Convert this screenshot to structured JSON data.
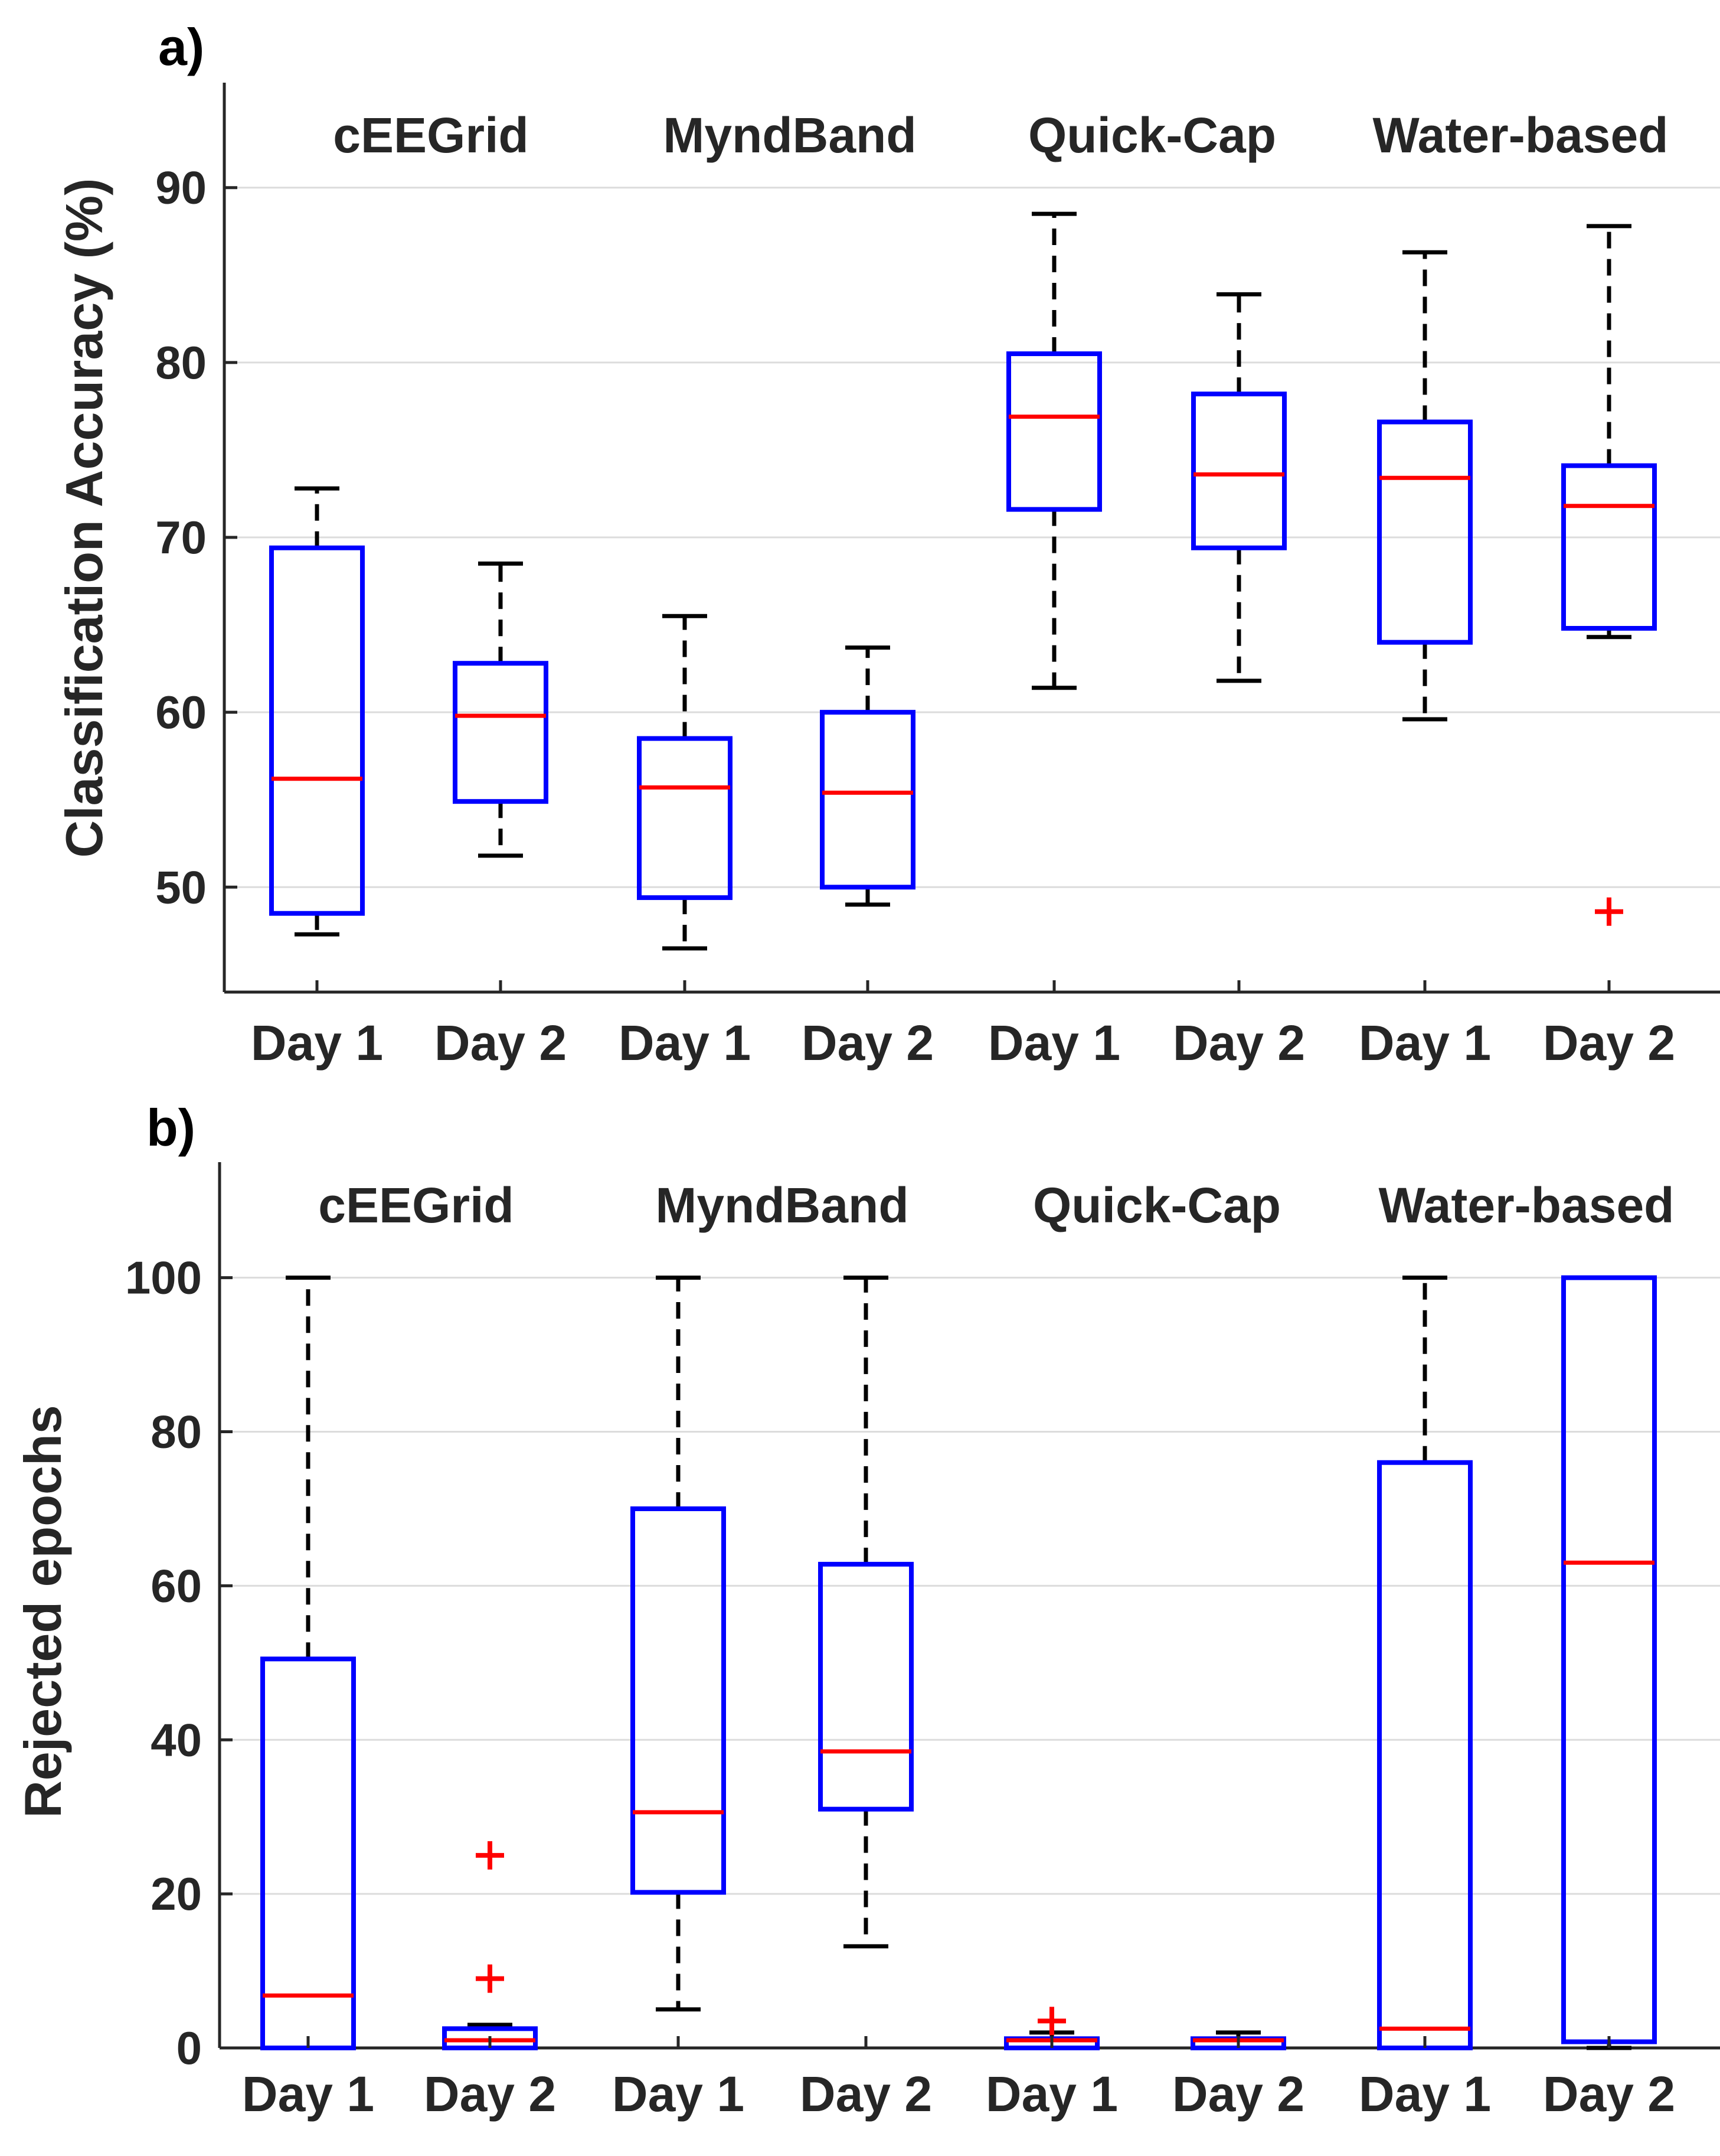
{
  "colors": {
    "box": "#0000ff",
    "median": "#ff0000",
    "whisker": "#000000",
    "outlier": "#ff0000",
    "grid": "#dcdcdc",
    "axis": "#262626"
  },
  "chart_data": [
    {
      "type": "boxplot",
      "panel_label": "a)",
      "ylabel": "Classification Accuracy (%)",
      "ylim": [
        44,
        96
      ],
      "yticks": [
        50,
        60,
        70,
        80,
        90
      ],
      "groups": [
        "cEEGrid",
        "MyndBand",
        "Quick-Cap",
        "Water-based"
      ],
      "categories": [
        "Day 1",
        "Day 2",
        "Day 1",
        "Day 2",
        "Day 1",
        "Day 2",
        "Day 1",
        "Day 2"
      ],
      "boxes": [
        {
          "group": "cEEGrid",
          "day": "Day 1",
          "whisker_low": 47.3,
          "q1": 48.5,
          "median": 56.2,
          "q3": 69.4,
          "whisker_high": 72.8,
          "outliers": []
        },
        {
          "group": "cEEGrid",
          "day": "Day 2",
          "whisker_low": 51.8,
          "q1": 54.9,
          "median": 59.8,
          "q3": 62.8,
          "whisker_high": 68.5,
          "outliers": []
        },
        {
          "group": "MyndBand",
          "day": "Day 1",
          "whisker_low": 46.5,
          "q1": 49.4,
          "median": 55.7,
          "q3": 58.5,
          "whisker_high": 65.5,
          "outliers": []
        },
        {
          "group": "MyndBand",
          "day": "Day 2",
          "whisker_low": 49.0,
          "q1": 50.0,
          "median": 55.4,
          "q3": 60.0,
          "whisker_high": 63.7,
          "outliers": []
        },
        {
          "group": "Quick-Cap",
          "day": "Day 1",
          "whisker_low": 61.4,
          "q1": 71.6,
          "median": 76.9,
          "q3": 80.5,
          "whisker_high": 88.5,
          "outliers": []
        },
        {
          "group": "Quick-Cap",
          "day": "Day 2",
          "whisker_low": 61.8,
          "q1": 69.4,
          "median": 73.6,
          "q3": 78.2,
          "whisker_high": 83.9,
          "outliers": []
        },
        {
          "group": "Water-based",
          "day": "Day 1",
          "whisker_low": 59.6,
          "q1": 64.0,
          "median": 73.4,
          "q3": 76.6,
          "whisker_high": 86.3,
          "outliers": []
        },
        {
          "group": "Water-based",
          "day": "Day 2",
          "whisker_low": 64.3,
          "q1": 64.8,
          "median": 71.8,
          "q3": 74.1,
          "whisker_high": 87.8,
          "outliers": [
            48.6
          ]
        }
      ]
    },
    {
      "type": "boxplot",
      "panel_label": "b)",
      "ylabel": "Rejected epochs",
      "ylim": [
        0,
        115
      ],
      "yticks": [
        0,
        20,
        40,
        60,
        80,
        100
      ],
      "groups": [
        "cEEGrid",
        "MyndBand",
        "Quick-Cap",
        "Water-based"
      ],
      "categories": [
        "Day 1",
        "Day 2",
        "Day 1",
        "Day 2",
        "Day 1",
        "Day 2",
        "Day 1",
        "Day 2"
      ],
      "boxes": [
        {
          "group": "cEEGrid",
          "day": "Day 1",
          "whisker_low": 0,
          "q1": 0,
          "median": 6.8,
          "q3": 50.5,
          "whisker_high": 100,
          "outliers": []
        },
        {
          "group": "cEEGrid",
          "day": "Day 2",
          "whisker_low": 0,
          "q1": 0,
          "median": 1.0,
          "q3": 2.5,
          "whisker_high": 3.0,
          "outliers": [
            9,
            25
          ]
        },
        {
          "group": "MyndBand",
          "day": "Day 1",
          "whisker_low": 5,
          "q1": 20.2,
          "median": 30.6,
          "q3": 70.0,
          "whisker_high": 100,
          "outliers": []
        },
        {
          "group": "MyndBand",
          "day": "Day 2",
          "whisker_low": 13.2,
          "q1": 31.0,
          "median": 38.5,
          "q3": 62.8,
          "whisker_high": 100,
          "outliers": []
        },
        {
          "group": "Quick-Cap",
          "day": "Day 1",
          "whisker_low": 0,
          "q1": 0,
          "median": 1.0,
          "q3": 1.2,
          "whisker_high": 2.0,
          "outliers": [
            3.5
          ]
        },
        {
          "group": "Quick-Cap",
          "day": "Day 2",
          "whisker_low": 0,
          "q1": 0,
          "median": 1.0,
          "q3": 1.2,
          "whisker_high": 2.0,
          "outliers": []
        },
        {
          "group": "Water-based",
          "day": "Day 1",
          "whisker_low": 0,
          "q1": 0,
          "median": 2.5,
          "q3": 76.0,
          "whisker_high": 100,
          "outliers": []
        },
        {
          "group": "Water-based",
          "day": "Day 2",
          "whisker_low": 0,
          "q1": 0.8,
          "median": 63.0,
          "q3": 100,
          "whisker_high": 100,
          "outliers": []
        }
      ]
    }
  ]
}
